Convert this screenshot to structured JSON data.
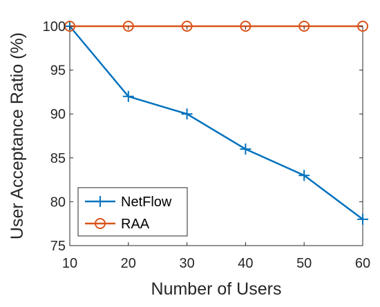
{
  "chart_data": {
    "type": "line",
    "title": "",
    "xlabel": "Number of Users",
    "ylabel": "User Acceptance Ratio (%)",
    "x": [
      10,
      20,
      30,
      40,
      50,
      60
    ],
    "xlim": [
      10,
      60
    ],
    "ylim": [
      75,
      100
    ],
    "xticks": [
      10,
      20,
      30,
      40,
      50,
      60
    ],
    "yticks": [
      75,
      80,
      85,
      90,
      95,
      100
    ],
    "grid": false,
    "legend_position": "bottom-left",
    "series": [
      {
        "name": "NetFlow",
        "values": [
          100,
          92,
          90,
          86,
          83,
          78
        ],
        "color": "#0072BD",
        "marker": "plus"
      },
      {
        "name": "RAA",
        "values": [
          100,
          100,
          100,
          100,
          100,
          100
        ],
        "color": "#D95319",
        "marker": "circle"
      }
    ]
  }
}
